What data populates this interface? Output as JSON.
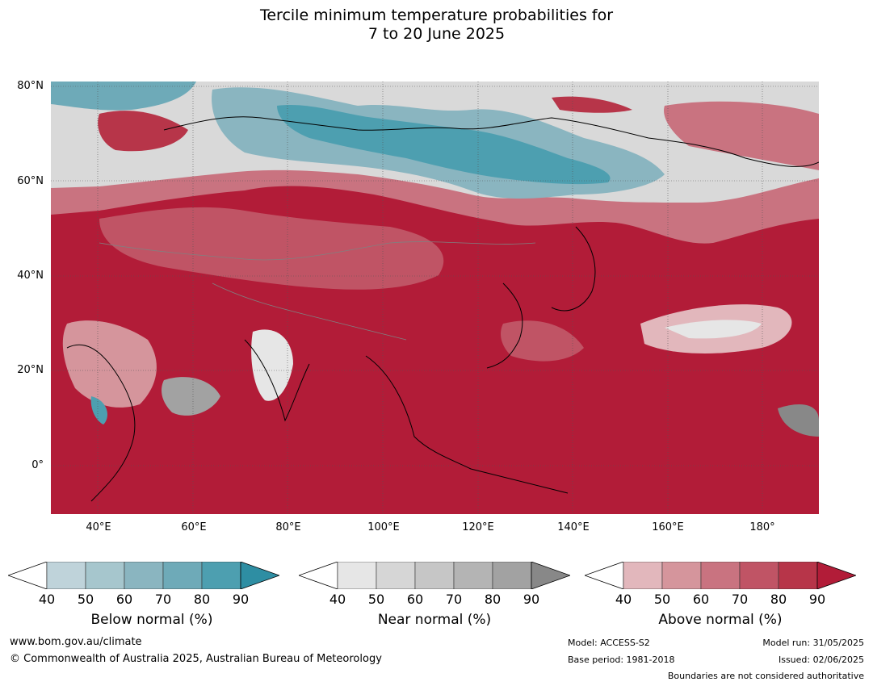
{
  "title_line1": "Tercile minimum temperature probabilities for",
  "title_line2": "7 to 20 June 2025",
  "lat_labels": [
    "80°N",
    "60°N",
    "40°N",
    "20°N",
    "0°"
  ],
  "lon_labels": [
    "40°E",
    "60°E",
    "80°E",
    "100°E",
    "120°E",
    "140°E",
    "160°E",
    "180°"
  ],
  "colorbars": [
    {
      "title": "Below normal (%)",
      "ticks": [
        "40",
        "50",
        "60",
        "70",
        "80",
        "90"
      ],
      "colors": [
        "#bfd3da",
        "#a6c6cd",
        "#8ab5c0",
        "#6eaab8",
        "#4d9fb0",
        "#2e8ea3"
      ]
    },
    {
      "title": "Near normal (%)",
      "ticks": [
        "40",
        "50",
        "60",
        "70",
        "80",
        "90"
      ],
      "colors": [
        "#e6e6e6",
        "#d6d6d6",
        "#c6c6c6",
        "#b4b4b4",
        "#a2a2a2",
        "#888888"
      ]
    },
    {
      "title": "Above normal (%)",
      "ticks": [
        "40",
        "50",
        "60",
        "70",
        "80",
        "90"
      ],
      "colors": [
        "#e2b7bc",
        "#d5959c",
        "#c97380",
        "#c05465",
        "#b73549",
        "#b21c38"
      ]
    }
  ],
  "footer": {
    "website": "www.bom.gov.au/climate",
    "copyright": "© Commonwealth of Australia 2025, Australian Bureau of Meteorology",
    "model": "Model: ACCESS-S2",
    "base_period": "Base period: 1981-2018",
    "model_run": "Model run: 31/05/2025",
    "issued": "Issued: 02/06/2025",
    "boundaries_note": "Boundaries are not considered authoritative"
  }
}
